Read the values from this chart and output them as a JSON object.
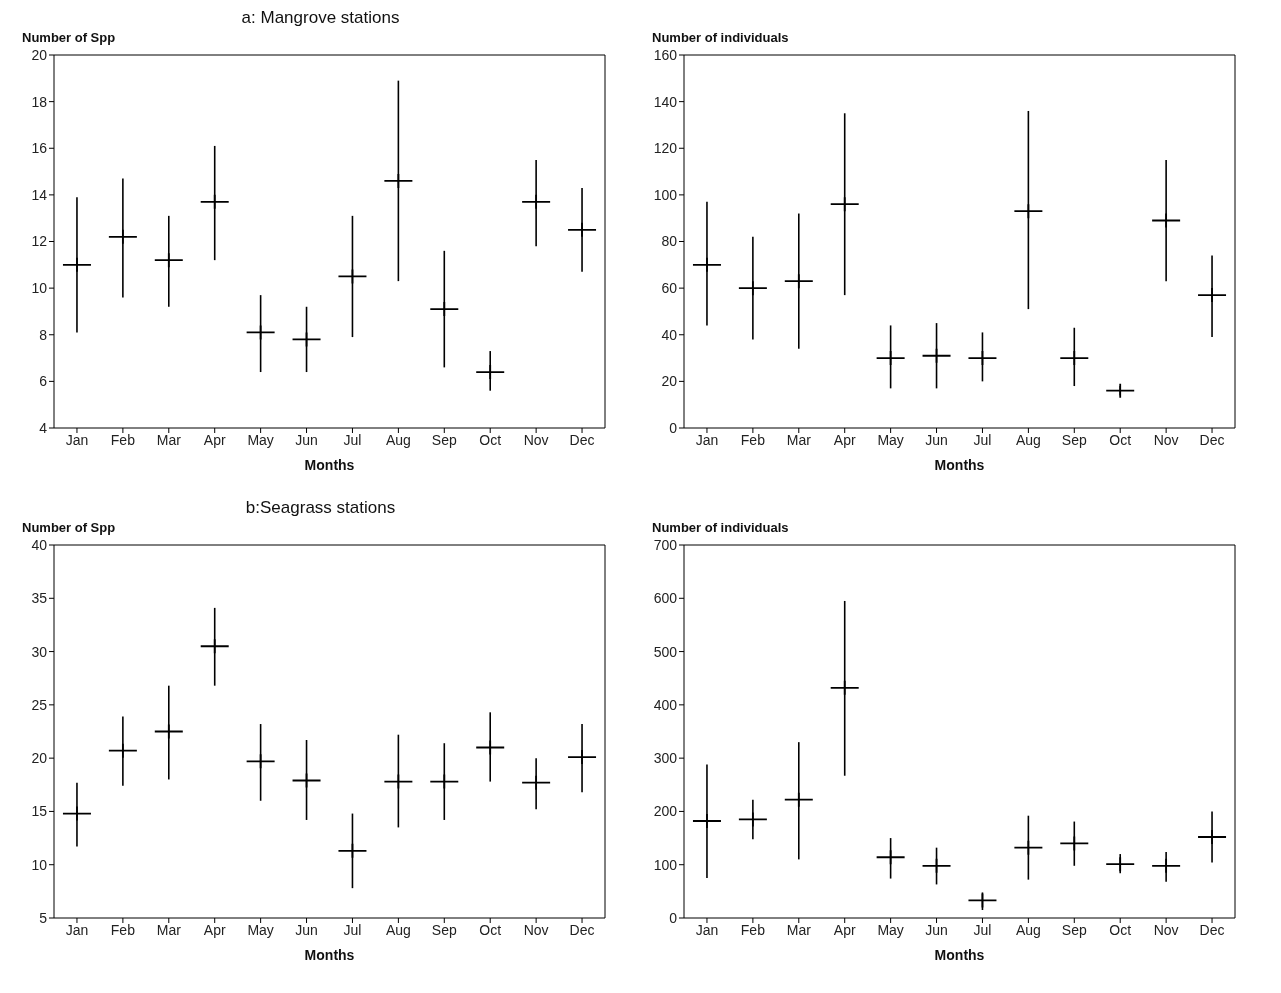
{
  "chart_data": [
    {
      "type": "scatter",
      "title": "a: Mangrove stations",
      "ylabel": "Number of Spp",
      "xlabel": "Months",
      "categories": [
        "Jan",
        "Feb",
        "Mar",
        "Apr",
        "May",
        "Jun",
        "Jul",
        "Aug",
        "Sep",
        "Oct",
        "Nov",
        "Dec"
      ],
      "color": "#000000",
      "values": [
        11,
        12.2,
        11.2,
        13.7,
        8.1,
        7.8,
        10.5,
        14.6,
        9.1,
        6.4,
        13.7,
        12.5
      ],
      "errors": [
        [
          8.1,
          13.9
        ],
        [
          9.6,
          14.7
        ],
        [
          9.2,
          13.1
        ],
        [
          11.2,
          16.1
        ],
        [
          6.4,
          9.7
        ],
        [
          6.4,
          9.2
        ],
        [
          7.9,
          13.1
        ],
        [
          10.3,
          18.9
        ],
        [
          6.6,
          11.6
        ],
        [
          5.6,
          7.3
        ],
        [
          11.8,
          15.5
        ],
        [
          10.7,
          14.3
        ]
      ],
      "marker": "cross",
      "ylim": [
        4,
        20
      ],
      "yticks": [
        4,
        6,
        8,
        10,
        12,
        14,
        16,
        18,
        20
      ]
    },
    {
      "type": "scatter",
      "ylabel": "Number of individuals",
      "xlabel": "Months",
      "categories": [
        "Jan",
        "Feb",
        "Mar",
        "Apr",
        "May",
        "Jun",
        "Jul",
        "Aug",
        "Sep",
        "Oct",
        "Nov",
        "Dec"
      ],
      "color": "#000000",
      "values": [
        70,
        60,
        63,
        96,
        30,
        31,
        30,
        93,
        30,
        16,
        89,
        57
      ],
      "errors": [
        [
          44,
          97
        ],
        [
          38,
          82
        ],
        [
          34,
          92
        ],
        [
          57,
          135
        ],
        [
          17,
          44
        ],
        [
          17,
          45
        ],
        [
          20,
          41
        ],
        [
          51,
          136
        ],
        [
          18,
          43
        ],
        [
          14,
          18
        ],
        [
          63,
          115
        ],
        [
          39,
          74
        ]
      ],
      "marker": "cross",
      "ylim": [
        0,
        160
      ],
      "yticks": [
        0,
        20,
        40,
        60,
        80,
        100,
        120,
        140,
        160
      ]
    },
    {
      "type": "scatter",
      "title": "b:Seagrass stations",
      "ylabel": "Number of Spp",
      "xlabel": "Months",
      "categories": [
        "Jan",
        "Feb",
        "Mar",
        "Apr",
        "May",
        "Jun",
        "Jul",
        "Aug",
        "Sep",
        "Oct",
        "Nov",
        "Dec"
      ],
      "color": "#000000",
      "values": [
        14.8,
        20.7,
        22.5,
        30.5,
        19.7,
        17.9,
        11.3,
        17.8,
        17.8,
        21,
        17.7,
        20.1
      ],
      "errors": [
        [
          11.7,
          17.7
        ],
        [
          17.4,
          23.9
        ],
        [
          18,
          26.8
        ],
        [
          26.8,
          34.1
        ],
        [
          16,
          23.2
        ],
        [
          14.2,
          21.7
        ],
        [
          7.8,
          14.8
        ],
        [
          13.5,
          22.2
        ],
        [
          14.2,
          21.4
        ],
        [
          17.8,
          24.3
        ],
        [
          15.2,
          20
        ],
        [
          16.8,
          23.2
        ]
      ],
      "marker": "cross",
      "ylim": [
        5,
        40
      ],
      "yticks": [
        5,
        10,
        15,
        20,
        25,
        30,
        35,
        40
      ]
    },
    {
      "type": "scatter",
      "ylabel": "Number of individuals",
      "xlabel": "Months",
      "categories": [
        "Jan",
        "Feb",
        "Mar",
        "Apr",
        "May",
        "Jun",
        "Jul",
        "Aug",
        "Sep",
        "Oct",
        "Nov",
        "Dec"
      ],
      "color": "#000000",
      "values": [
        182,
        185,
        222,
        432,
        114,
        98,
        33,
        132,
        140,
        101,
        98,
        152
      ],
      "errors": [
        [
          75,
          288
        ],
        [
          148,
          222
        ],
        [
          110,
          330
        ],
        [
          267,
          595
        ],
        [
          74,
          150
        ],
        [
          63,
          132
        ],
        [
          15,
          48
        ],
        [
          72,
          192
        ],
        [
          98,
          181
        ],
        [
          84,
          120
        ],
        [
          68,
          124
        ],
        [
          104,
          200
        ]
      ],
      "marker": "cross",
      "ylim": [
        0,
        700
      ],
      "yticks": [
        0,
        100,
        200,
        300,
        400,
        500,
        600,
        700
      ]
    }
  ]
}
